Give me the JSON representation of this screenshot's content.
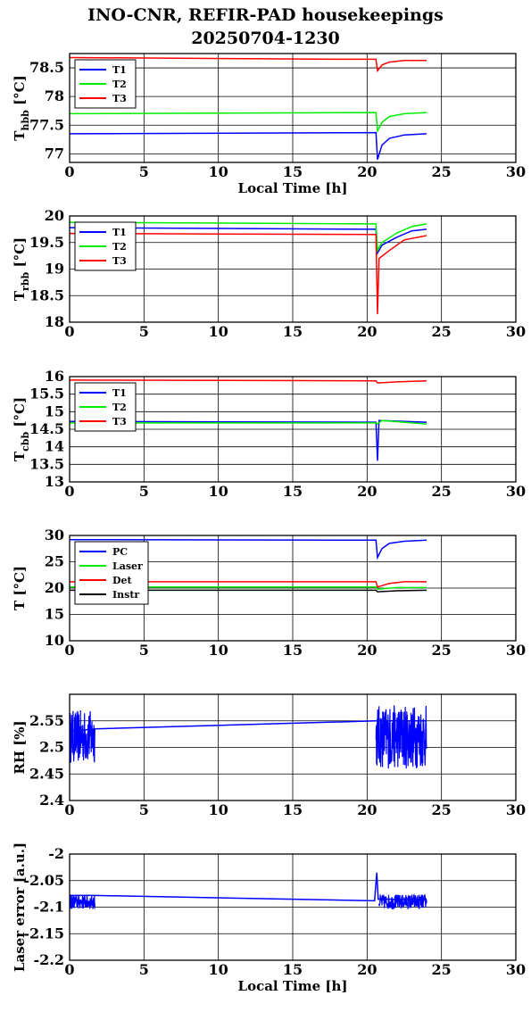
{
  "title": "INO-CNR, REFIR-PAD housekeepings",
  "subtitle": "20250704-1230",
  "colors": {
    "blue": "#0000ff",
    "green": "#00ee00",
    "red": "#ff0000",
    "black": "#000000"
  },
  "chart_data": [
    {
      "type": "line",
      "ylabel": "T",
      "ylabel_sub": "hbb",
      "ylabel_unit": "[°C]",
      "xlabel": "Local Time [h]",
      "xlim": [
        0,
        30
      ],
      "ylim": [
        76.85,
        78.75
      ],
      "xticks": [
        0,
        5,
        10,
        15,
        20,
        25,
        30
      ],
      "yticks": [
        77,
        77.5,
        78,
        78.5
      ],
      "ytick_labels": [
        "77",
        "77.5",
        "78",
        "78.5"
      ],
      "grid": true,
      "legend": "top-left",
      "series": [
        {
          "name": "T1",
          "color": "#0000ff",
          "points": [
            [
              0,
              77.35
            ],
            [
              20.6,
              77.37
            ],
            [
              20.7,
              76.9
            ],
            [
              21,
              77.15
            ],
            [
              21.5,
              77.27
            ],
            [
              22.5,
              77.33
            ],
            [
              24,
              77.35
            ]
          ]
        },
        {
          "name": "T2",
          "color": "#00ee00",
          "points": [
            [
              0,
              77.7
            ],
            [
              20.6,
              77.72
            ],
            [
              20.7,
              77.4
            ],
            [
              21,
              77.55
            ],
            [
              21.5,
              77.65
            ],
            [
              22.5,
              77.7
            ],
            [
              24,
              77.72
            ]
          ]
        },
        {
          "name": "T3",
          "color": "#ff0000",
          "points": [
            [
              0,
              78.68
            ],
            [
              18,
              78.65
            ],
            [
              20.6,
              78.65
            ],
            [
              20.7,
              78.45
            ],
            [
              21,
              78.55
            ],
            [
              21.5,
              78.6
            ],
            [
              22.5,
              78.63
            ],
            [
              24,
              78.63
            ]
          ]
        }
      ]
    },
    {
      "type": "line",
      "ylabel": "T",
      "ylabel_sub": "rbb",
      "ylabel_unit": "[°C]",
      "xlabel": "",
      "xlim": [
        0,
        30
      ],
      "ylim": [
        18,
        20
      ],
      "xticks": [
        0,
        5,
        10,
        15,
        20,
        25,
        30
      ],
      "yticks": [
        18,
        18.5,
        19,
        19.5,
        20
      ],
      "ytick_labels": [
        "18",
        "18.5",
        "19",
        "19.5",
        "20"
      ],
      "grid": true,
      "legend": "top-left",
      "series": [
        {
          "name": "T1",
          "color": "#0000ff",
          "points": [
            [
              0,
              19.78
            ],
            [
              20.6,
              19.75
            ],
            [
              20.7,
              19.3
            ],
            [
              21,
              19.45
            ],
            [
              22,
              19.6
            ],
            [
              23,
              19.72
            ],
            [
              24,
              19.75
            ]
          ]
        },
        {
          "name": "T2",
          "color": "#00ee00",
          "points": [
            [
              0,
              19.88
            ],
            [
              20.6,
              19.85
            ],
            [
              20.7,
              19.35
            ],
            [
              21,
              19.5
            ],
            [
              22,
              19.68
            ],
            [
              23,
              19.8
            ],
            [
              24,
              19.85
            ]
          ]
        },
        {
          "name": "T3",
          "color": "#ff0000",
          "points": [
            [
              0,
              19.67
            ],
            [
              20.6,
              19.65
            ],
            [
              20.7,
              18.15
            ],
            [
              20.8,
              19.2
            ],
            [
              21.5,
              19.35
            ],
            [
              22.5,
              19.55
            ],
            [
              24,
              19.63
            ]
          ]
        }
      ]
    },
    {
      "type": "line",
      "ylabel": "T",
      "ylabel_sub": "cbb",
      "ylabel_unit": "[°C]",
      "xlabel": "",
      "xlim": [
        0,
        30
      ],
      "ylim": [
        13,
        16
      ],
      "xticks": [
        0,
        5,
        10,
        15,
        20,
        25,
        30
      ],
      "yticks": [
        13,
        13.5,
        14,
        14.5,
        15,
        15.5,
        16
      ],
      "ytick_labels": [
        "13",
        "13.5",
        "14",
        "14.5",
        "15",
        "15.5",
        "16"
      ],
      "grid": true,
      "legend": "top-left",
      "series": [
        {
          "name": "T1",
          "color": "#0000ff",
          "points": [
            [
              0,
              14.72
            ],
            [
              20.6,
              14.7
            ],
            [
              20.7,
              13.6
            ],
            [
              20.8,
              14.75
            ],
            [
              24,
              14.7
            ]
          ]
        },
        {
          "name": "T2",
          "color": "#00ee00",
          "points": [
            [
              0,
              14.68
            ],
            [
              20.6,
              14.68
            ],
            [
              20.7,
              14.65
            ],
            [
              21,
              14.75
            ],
            [
              24,
              14.65
            ]
          ]
        },
        {
          "name": "T3",
          "color": "#ff0000",
          "points": [
            [
              0,
              15.9
            ],
            [
              20.6,
              15.88
            ],
            [
              20.7,
              15.82
            ],
            [
              22,
              15.85
            ],
            [
              24,
              15.88
            ]
          ]
        }
      ]
    },
    {
      "type": "line",
      "ylabel": "T [°C]",
      "ylabel_sub": "",
      "ylabel_unit": "",
      "xlabel": "",
      "xlim": [
        0,
        30
      ],
      "ylim": [
        10,
        30
      ],
      "xticks": [
        0,
        5,
        10,
        15,
        20,
        25,
        30
      ],
      "yticks": [
        10,
        15,
        20,
        25,
        30
      ],
      "ytick_labels": [
        "10",
        "15",
        "20",
        "25",
        "30"
      ],
      "grid": true,
      "legend": "top-left",
      "series": [
        {
          "name": "PC",
          "color": "#0000ff",
          "points": [
            [
              0,
              29.2
            ],
            [
              20.6,
              29.1
            ],
            [
              20.7,
              25.8
            ],
            [
              21,
              27.5
            ],
            [
              21.5,
              28.5
            ],
            [
              22.5,
              28.9
            ],
            [
              24,
              29.1
            ]
          ]
        },
        {
          "name": "Laser",
          "color": "#00ee00",
          "points": [
            [
              0,
              20.2
            ],
            [
              20.6,
              20.2
            ],
            [
              20.7,
              19.8
            ],
            [
              22,
              20.1
            ],
            [
              24,
              20.1
            ]
          ]
        },
        {
          "name": "Det",
          "color": "#ff0000",
          "points": [
            [
              0,
              21.2
            ],
            [
              20.6,
              21.2
            ],
            [
              20.7,
              20.2
            ],
            [
              21.5,
              20.9
            ],
            [
              22.5,
              21.2
            ],
            [
              24,
              21.2
            ]
          ]
        },
        {
          "name": "Instr",
          "color": "#000000",
          "points": [
            [
              0,
              19.6
            ],
            [
              20.6,
              19.6
            ],
            [
              20.7,
              19.3
            ],
            [
              22,
              19.5
            ],
            [
              24,
              19.6
            ]
          ]
        }
      ]
    },
    {
      "type": "line",
      "ylabel": "RH [%]",
      "ylabel_sub": "",
      "ylabel_unit": "",
      "xlabel": "",
      "xlim": [
        0,
        30
      ],
      "ylim": [
        2.4,
        2.6
      ],
      "xticks": [
        0,
        5,
        10,
        15,
        20,
        25,
        30
      ],
      "yticks": [
        2.4,
        2.45,
        2.5,
        2.55
      ],
      "ytick_labels": [
        "2.4",
        "2.45",
        "2.5",
        "2.55"
      ],
      "grid": true,
      "legend": "none",
      "series": [
        {
          "color": "#0000ff",
          "points": [
            [
              0,
              2.53
            ],
            [
              1.7,
              2.535
            ],
            [
              20.6,
              2.55
            ],
            [
              24,
              2.55
            ]
          ],
          "noise": [
            {
              "from": 0,
              "to": 1.7,
              "center": 2.52,
              "amp": 0.05
            },
            {
              "from": 20.6,
              "to": 24,
              "center": 2.52,
              "amp": 0.06
            }
          ]
        }
      ]
    },
    {
      "type": "line",
      "ylabel": "Laser error [a.u.]",
      "ylabel_sub": "",
      "ylabel_unit": "",
      "xlabel": "Local Time [h]",
      "xlim": [
        0,
        30
      ],
      "ylim": [
        -2.2,
        -2
      ],
      "xticks": [
        0,
        5,
        10,
        15,
        20,
        25,
        30
      ],
      "yticks": [
        -2.2,
        -2.15,
        -2.1,
        -2.05,
        -2
      ],
      "ytick_labels": [
        "-2.2",
        "-2.15",
        "-2.1",
        "-2.05",
        "-2"
      ],
      "grid": true,
      "legend": "none",
      "series": [
        {
          "color": "#0000ff",
          "points": [
            [
              0,
              -2.078
            ],
            [
              1.7,
              -2.078
            ],
            [
              20.5,
              -2.088
            ],
            [
              20.65,
              -2.035
            ],
            [
              20.75,
              -2.085
            ],
            [
              24,
              -2.085
            ]
          ],
          "noise": [
            {
              "from": 0,
              "to": 1.7,
              "center": -2.09,
              "amp": 0.014
            },
            {
              "from": 20.8,
              "to": 24,
              "center": -2.09,
              "amp": 0.014
            }
          ]
        }
      ]
    }
  ]
}
